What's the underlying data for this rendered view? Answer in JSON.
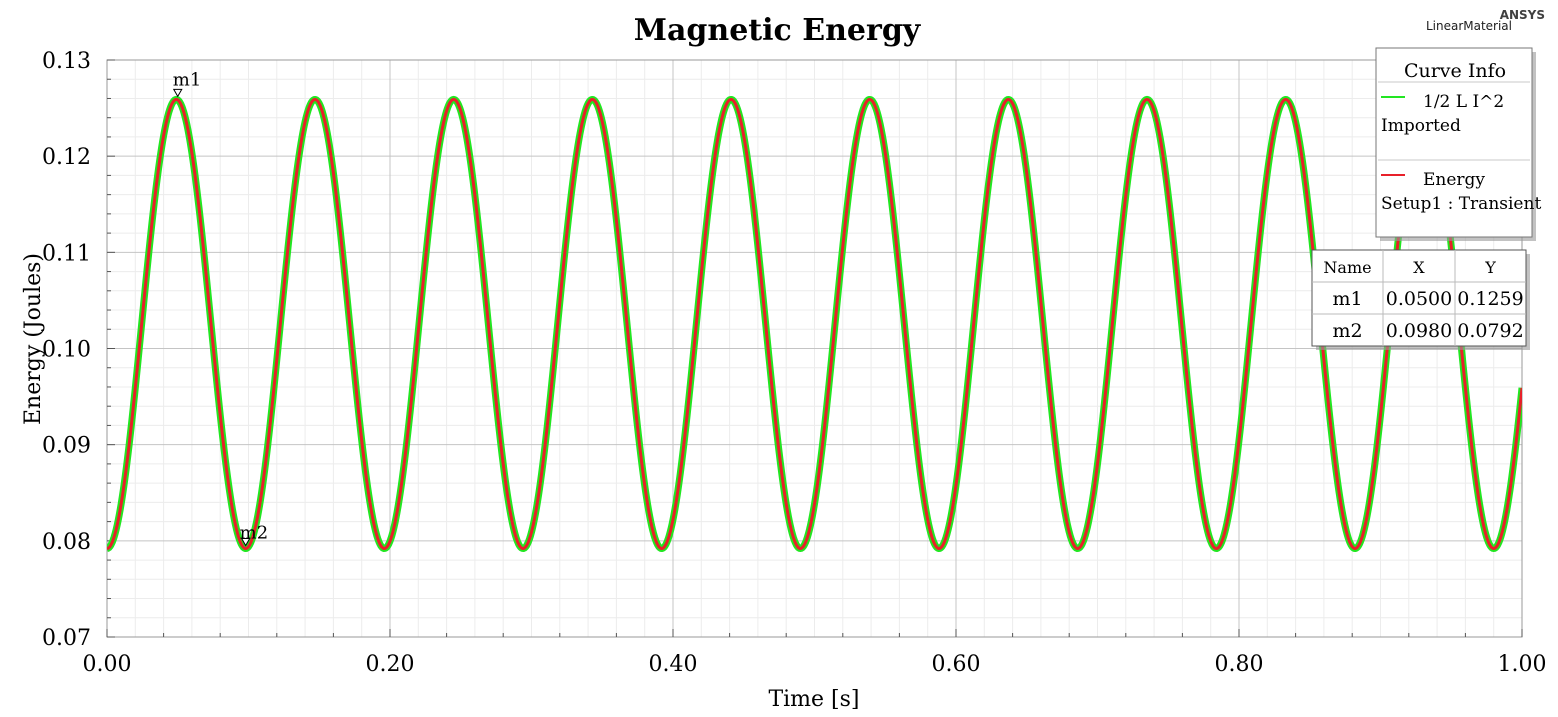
{
  "header": {
    "company": "ANSYS",
    "project": "LinearMaterial"
  },
  "chart_data": {
    "type": "line",
    "title": "Magnetic Energy",
    "xlabel": "Time [s]",
    "ylabel": "Energy (Joules)",
    "xlim": [
      0.0,
      1.0
    ],
    "ylim": [
      0.07,
      0.13
    ],
    "x_ticks": [
      "0.00",
      "0.20",
      "0.40",
      "0.60",
      "0.80",
      "1.00"
    ],
    "y_ticks": [
      "0.07",
      "0.08",
      "0.09",
      "0.10",
      "0.11",
      "0.12",
      "0.13"
    ],
    "grid": true,
    "legend_position": "top-right",
    "legend_title": "Curve Info",
    "curve_model": {
      "form": "offset cosine",
      "period_s": 0.098,
      "min_value": 0.0792,
      "max_value": 0.1259,
      "first_min_s": 0.0
    },
    "series": [
      {
        "name": "1/2 L I^2",
        "source": "Imported",
        "color": "#22e622",
        "peaks": [
          {
            "x": 0.05,
            "y": 0.1259
          },
          {
            "x": 0.148,
            "y": 0.1259
          },
          {
            "x": 0.246,
            "y": 0.1259
          },
          {
            "x": 0.343,
            "y": 0.1259
          },
          {
            "x": 0.441,
            "y": 0.1259
          },
          {
            "x": 0.539,
            "y": 0.1259
          },
          {
            "x": 0.637,
            "y": 0.1259
          },
          {
            "x": 0.735,
            "y": 0.1259
          },
          {
            "x": 0.833,
            "y": 0.1259
          },
          {
            "x": 0.931,
            "y": 0.1259
          }
        ],
        "troughs": [
          {
            "x": 0.0,
            "y": 0.0792
          },
          {
            "x": 0.098,
            "y": 0.0792
          },
          {
            "x": 0.196,
            "y": 0.0792
          },
          {
            "x": 0.294,
            "y": 0.0792
          },
          {
            "x": 0.392,
            "y": 0.0792
          },
          {
            "x": 0.49,
            "y": 0.0792
          },
          {
            "x": 0.588,
            "y": 0.0792
          },
          {
            "x": 0.686,
            "y": 0.0792
          },
          {
            "x": 0.784,
            "y": 0.0792
          },
          {
            "x": 0.882,
            "y": 0.0792
          },
          {
            "x": 0.98,
            "y": 0.0792
          }
        ],
        "end": {
          "x": 1.0,
          "y": 0.0912
        }
      },
      {
        "name": "Energy",
        "source": "Setup1 : Transient",
        "color": "#e8202a",
        "peaks": [
          {
            "x": 0.05,
            "y": 0.1259
          },
          {
            "x": 0.148,
            "y": 0.1259
          },
          {
            "x": 0.246,
            "y": 0.1259
          },
          {
            "x": 0.343,
            "y": 0.1259
          },
          {
            "x": 0.441,
            "y": 0.1259
          },
          {
            "x": 0.539,
            "y": 0.1259
          },
          {
            "x": 0.637,
            "y": 0.1259
          },
          {
            "x": 0.735,
            "y": 0.1259
          },
          {
            "x": 0.833,
            "y": 0.1259
          },
          {
            "x": 0.931,
            "y": 0.1259
          }
        ],
        "troughs": [
          {
            "x": 0.0,
            "y": 0.0792
          },
          {
            "x": 0.098,
            "y": 0.0792
          },
          {
            "x": 0.196,
            "y": 0.0792
          },
          {
            "x": 0.294,
            "y": 0.0792
          },
          {
            "x": 0.392,
            "y": 0.0792
          },
          {
            "x": 0.49,
            "y": 0.0792
          },
          {
            "x": 0.588,
            "y": 0.0792
          },
          {
            "x": 0.686,
            "y": 0.0792
          },
          {
            "x": 0.784,
            "y": 0.0792
          },
          {
            "x": 0.882,
            "y": 0.0792
          },
          {
            "x": 0.98,
            "y": 0.0792
          }
        ],
        "end": {
          "x": 1.0,
          "y": 0.0912
        }
      }
    ],
    "markers": [
      {
        "name": "m1",
        "x": 0.05,
        "y": 0.1259,
        "x_label": "0.0500",
        "y_label": "0.1259"
      },
      {
        "name": "m2",
        "x": 0.098,
        "y": 0.0792,
        "x_label": "0.0980",
        "y_label": "0.0792"
      }
    ],
    "marker_table": {
      "headers": [
        "Name",
        "X",
        "Y"
      ]
    }
  }
}
